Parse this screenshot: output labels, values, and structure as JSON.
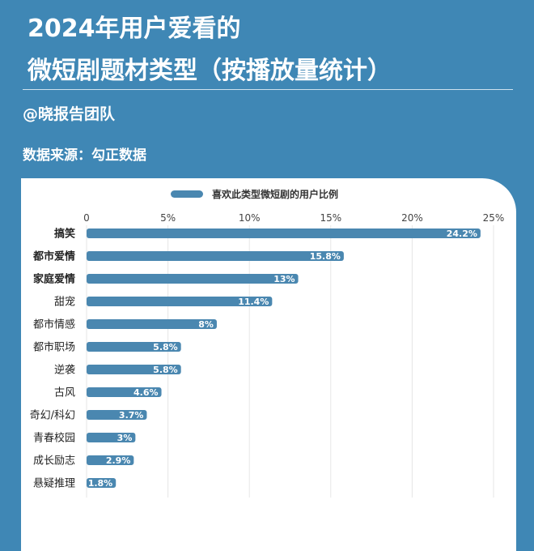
{
  "header": {
    "title_line1": "2024年用户爱看的",
    "title_line2": "微短剧题材类型（按播放量统计）",
    "author": "@晓报告团队",
    "source": "数据来源：勾正数据"
  },
  "colors": {
    "background": "#3f87b5",
    "bar": "#4a87b0",
    "panel": "#ffffff"
  },
  "chart_data": {
    "type": "bar",
    "orientation": "horizontal",
    "legend": "喜欢此类型微短剧的用户比例",
    "legend_position": "top",
    "categories": [
      "搞笑",
      "都市爱情",
      "家庭爱情",
      "甜宠",
      "都市情感",
      "都市职场",
      "逆袭",
      "古风",
      "奇幻/科幻",
      "青春校园",
      "成长励志",
      "悬疑推理"
    ],
    "bold_categories": [
      "搞笑",
      "都市爱情",
      "家庭爱情"
    ],
    "values": [
      24.2,
      15.8,
      13,
      11.4,
      8,
      5.8,
      5.8,
      4.6,
      3.7,
      3,
      2.9,
      1.8
    ],
    "value_labels": [
      "24.2%",
      "15.8%",
      "13%",
      "11.4%",
      "8%",
      "5.8%",
      "5.8%",
      "4.6%",
      "3.7%",
      "3%",
      "2.9%",
      "1.8%"
    ],
    "x_ticks": [
      0,
      5,
      10,
      15,
      20,
      25
    ],
    "x_tick_labels": [
      "0",
      "5%",
      "10%",
      "15%",
      "20%",
      "25%"
    ],
    "xlim": [
      0,
      25
    ],
    "grid": true
  }
}
